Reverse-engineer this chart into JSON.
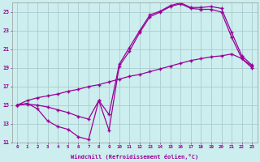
{
  "xlabel": "Windchill (Refroidissement éolien,°C)",
  "bg_color": "#cceeee",
  "grid_color": "#aacccc",
  "line_color": "#990099",
  "xlim": [
    -0.5,
    23.5
  ],
  "ylim": [
    11,
    26
  ],
  "xticks": [
    0,
    1,
    2,
    3,
    4,
    5,
    6,
    7,
    8,
    9,
    10,
    11,
    12,
    13,
    14,
    15,
    16,
    17,
    18,
    19,
    20,
    21,
    22,
    23
  ],
  "yticks": [
    11,
    13,
    15,
    17,
    19,
    21,
    23,
    25
  ],
  "line1_x": [
    0,
    1,
    2,
    3,
    4,
    5,
    6,
    7,
    8,
    9,
    10,
    11,
    12,
    13,
    14,
    15,
    16,
    17,
    18,
    19,
    20,
    21,
    22,
    23
  ],
  "line1_y": [
    15.0,
    15.2,
    14.6,
    13.3,
    12.7,
    12.4,
    11.6,
    11.3,
    15.5,
    12.3,
    19.2,
    20.8,
    22.8,
    24.5,
    25.0,
    25.6,
    25.9,
    25.4,
    25.3,
    25.3,
    25.0,
    22.3,
    20.0,
    19.0
  ],
  "line2_x": [
    0,
    1,
    2,
    3,
    4,
    5,
    6,
    7,
    8,
    9,
    10,
    11,
    12,
    13,
    14,
    15,
    16,
    17,
    18,
    19,
    20,
    21,
    22,
    23
  ],
  "line2_y": [
    15.0,
    15.1,
    15.0,
    14.8,
    14.5,
    14.2,
    13.8,
    13.5,
    15.5,
    14.0,
    19.4,
    21.2,
    23.0,
    24.7,
    25.1,
    25.7,
    26.0,
    25.5,
    25.5,
    25.6,
    25.4,
    22.8,
    20.3,
    19.3
  ],
  "line3_x": [
    0,
    1,
    2,
    3,
    4,
    5,
    6,
    7,
    8,
    9,
    10,
    11,
    12,
    13,
    14,
    15,
    16,
    17,
    18,
    19,
    20,
    21,
    22,
    23
  ],
  "line3_y": [
    15.0,
    15.5,
    15.8,
    16.0,
    16.2,
    16.5,
    16.7,
    17.0,
    17.2,
    17.5,
    17.8,
    18.1,
    18.3,
    18.6,
    18.9,
    19.2,
    19.5,
    19.8,
    20.0,
    20.2,
    20.3,
    20.5,
    20.0,
    19.2
  ]
}
